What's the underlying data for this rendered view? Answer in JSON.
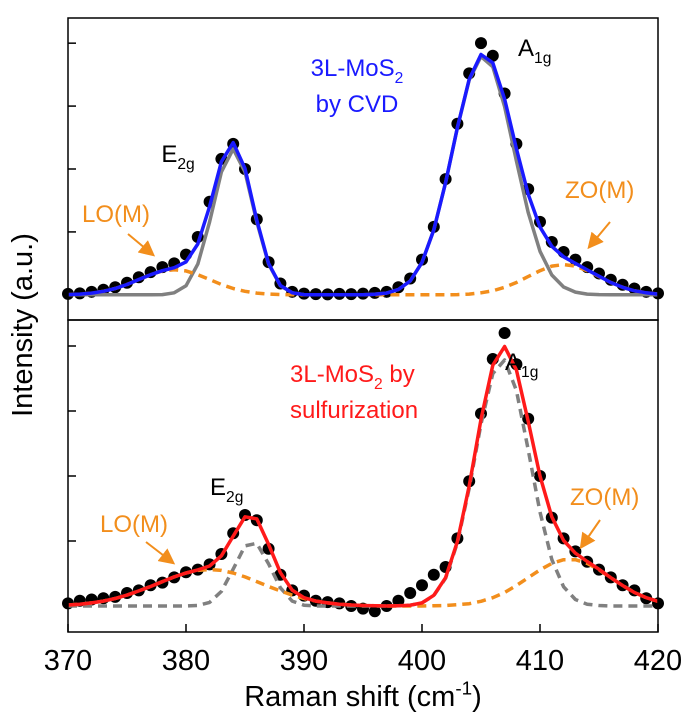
{
  "chart_data": [
    {
      "type": "line",
      "ylabel": "Intensity (a.u.)",
      "xlim": [
        370,
        420
      ],
      "ylim": [
        -0.1,
        1.1
      ],
      "yticks": [
        0,
        0.25,
        0.5,
        0.75,
        1
      ],
      "x": [
        370,
        371,
        372,
        373,
        374,
        375,
        376,
        377,
        378,
        379,
        380,
        381,
        382,
        383,
        384,
        385,
        386,
        387,
        388,
        389,
        390,
        391,
        392,
        393,
        394,
        395,
        396,
        397,
        398,
        399,
        400,
        401,
        402,
        403,
        404,
        405,
        406,
        407,
        408,
        409,
        410,
        411,
        412,
        413,
        414,
        415,
        416,
        417,
        418,
        419,
        420
      ],
      "series": [
        {
          "style": "markers",
          "color": "#000000",
          "values": [
            0.004,
            0.006,
            0.012,
            0.02,
            0.03,
            0.048,
            0.07,
            0.09,
            0.11,
            0.125,
            0.16,
            0.23,
            0.37,
            0.54,
            0.6,
            0.5,
            0.3,
            0.13,
            0.045,
            0.012,
            0.005,
            0.003,
            0.002,
            0.004,
            0.003,
            0.005,
            0.008,
            0.012,
            0.03,
            0.065,
            0.14,
            0.27,
            0.46,
            0.68,
            0.88,
            1.0,
            0.95,
            0.8,
            0.6,
            0.42,
            0.29,
            0.21,
            0.17,
            0.14,
            0.11,
            0.085,
            0.06,
            0.04,
            0.025,
            0.012,
            0.006
          ]
        },
        {
          "style": "solid",
          "color": "#808080",
          "values": [
            0,
            0,
            0,
            0,
            0,
            0,
            0,
            0,
            0.001,
            0.008,
            0.036,
            0.122,
            0.29,
            0.488,
            0.58,
            0.488,
            0.29,
            0.122,
            0.036,
            0.008,
            0.001,
            0,
            0,
            0,
            0,
            0,
            0.002,
            0.007,
            0.021,
            0.055,
            0.129,
            0.258,
            0.446,
            0.664,
            0.854,
            0.947,
            0.906,
            0.748,
            0.532,
            0.327,
            0.173,
            0.079,
            0.031,
            0.011,
            0.003,
            0.001,
            0,
            0,
            0,
            0,
            0
          ]
        },
        {
          "style": "dashed",
          "color": "#f28e1c",
          "values": [
            0.001,
            0.003,
            0.007,
            0.014,
            0.025,
            0.041,
            0.061,
            0.08,
            0.095,
            0.1,
            0.095,
            0.08,
            0.061,
            0.041,
            0.025,
            0.014,
            0.007,
            0.003,
            0.001,
            0,
            0,
            0,
            0,
            0,
            0,
            0,
            0,
            0,
            0,
            0,
            0,
            0,
            0,
            0.001,
            0.003,
            0.008,
            0.016,
            0.03,
            0.049,
            0.073,
            0.096,
            0.114,
            0.12,
            0.114,
            0.096,
            0.073,
            0.049,
            0.03,
            0.016,
            0.008,
            0.003
          ]
        },
        {
          "style": "solid",
          "color": "#1a1aff",
          "values": [
            0.001,
            0.003,
            0.007,
            0.014,
            0.025,
            0.041,
            0.061,
            0.08,
            0.096,
            0.108,
            0.131,
            0.202,
            0.351,
            0.529,
            0.605,
            0.502,
            0.297,
            0.125,
            0.037,
            0.008,
            0.001,
            0,
            0,
            0,
            0,
            0,
            0.002,
            0.007,
            0.021,
            0.055,
            0.129,
            0.258,
            0.446,
            0.665,
            0.857,
            0.955,
            0.922,
            0.778,
            0.581,
            0.4,
            0.269,
            0.193,
            0.151,
            0.125,
            0.099,
            0.074,
            0.049,
            0.03,
            0.016,
            0.008,
            0.003
          ]
        }
      ],
      "annotations": [
        {
          "color": "#1a1aff",
          "lines": [
            [
              {
                "text": "3L-MoS"
              },
              {
                "text": "2",
                "sub": true
              }
            ],
            [
              {
                "text": "by CVD"
              }
            ]
          ]
        },
        {
          "color": "#000000",
          "lines": [
            [
              {
                "text": "E"
              },
              {
                "text": "2g",
                "sub": true
              }
            ]
          ]
        },
        {
          "color": "#000000",
          "lines": [
            [
              {
                "text": "A"
              },
              {
                "text": "1g",
                "sub": true
              }
            ]
          ]
        },
        {
          "color": "#f28e1c",
          "lines": [
            [
              {
                "text": "LO(M)"
              }
            ]
          ]
        },
        {
          "color": "#f28e1c",
          "lines": [
            [
              {
                "text": "ZO(M)"
              }
            ]
          ]
        }
      ]
    },
    {
      "type": "line",
      "xlabel": [
        {
          "text": "Raman shift (cm"
        },
        {
          "text": "-1",
          "sup": true
        },
        {
          "text": ")"
        }
      ],
      "xlim": [
        370,
        420
      ],
      "xticks": [
        370,
        380,
        390,
        400,
        410,
        420
      ],
      "ylim": [
        -0.1,
        1.1
      ],
      "yticks": [
        0,
        0.25,
        0.5,
        0.75,
        1
      ],
      "x": [
        370,
        371,
        372,
        373,
        374,
        375,
        376,
        377,
        378,
        379,
        380,
        381,
        382,
        383,
        384,
        385,
        386,
        387,
        388,
        389,
        390,
        391,
        392,
        393,
        394,
        395,
        396,
        397,
        398,
        399,
        400,
        401,
        402,
        403,
        404,
        405,
        406,
        407,
        408,
        409,
        410,
        411,
        412,
        413,
        414,
        415,
        416,
        417,
        418,
        419,
        420
      ],
      "series": [
        {
          "style": "markers",
          "color": "#000000",
          "values": [
            0.01,
            0.02,
            0.025,
            0.03,
            0.035,
            0.05,
            0.06,
            0.08,
            0.09,
            0.11,
            0.13,
            0.14,
            0.16,
            0.2,
            0.28,
            0.35,
            0.33,
            0.22,
            0.12,
            0.06,
            0.04,
            0.02,
            0.015,
            0.01,
            0.0,
            -0.01,
            -0.02,
            0.0,
            0.02,
            0.05,
            0.08,
            0.12,
            0.15,
            0.26,
            0.48,
            0.74,
            0.95,
            1.05,
            0.93,
            0.72,
            0.5,
            0.34,
            0.26,
            0.21,
            0.17,
            0.14,
            0.11,
            0.08,
            0.06,
            0.03,
            0.01
          ]
        },
        {
          "style": "dashed",
          "color": "#808080",
          "values": [
            0,
            0,
            0,
            0,
            0,
            0,
            0,
            0,
            0,
            0,
            0,
            0.002,
            0.014,
            0.056,
            0.142,
            0.231,
            0.241,
            0.162,
            0.07,
            0.019,
            0.003,
            0,
            0,
            0,
            0,
            0,
            0,
            0,
            0.001,
            0.003,
            0.012,
            0.04,
            0.107,
            0.243,
            0.453,
            0.7,
            0.894,
            0.946,
            0.829,
            0.601,
            0.361,
            0.179,
            0.074,
            0.025,
            0.007,
            0.002,
            0,
            0,
            0,
            0,
            0
          ]
        },
        {
          "style": "dashed",
          "color": "#f28e1c",
          "values": [
            0.004,
            0.007,
            0.012,
            0.019,
            0.029,
            0.042,
            0.058,
            0.075,
            0.094,
            0.112,
            0.127,
            0.137,
            0.14,
            0.137,
            0.127,
            0.112,
            0.094,
            0.075,
            0.058,
            0.042,
            0.029,
            0.019,
            0.012,
            0.007,
            0.004,
            0.002,
            0.001,
            0,
            0,
            0,
            0,
            0.001,
            0.002,
            0.005,
            0.009,
            0.018,
            0.032,
            0.052,
            0.079,
            0.109,
            0.139,
            0.164,
            0.178,
            0.178,
            0.164,
            0.139,
            0.109,
            0.079,
            0.052,
            0.032,
            0.018
          ]
        },
        {
          "style": "solid",
          "color": "#ff1a1a",
          "values": [
            0.004,
            0.007,
            0.012,
            0.019,
            0.029,
            0.042,
            0.058,
            0.075,
            0.094,
            0.112,
            0.127,
            0.139,
            0.154,
            0.193,
            0.269,
            0.343,
            0.335,
            0.237,
            0.128,
            0.061,
            0.032,
            0.019,
            0.012,
            0.007,
            0.004,
            0.002,
            0.001,
            0,
            0.001,
            0.003,
            0.012,
            0.041,
            0.109,
            0.248,
            0.462,
            0.718,
            0.926,
            0.998,
            0.908,
            0.71,
            0.5,
            0.343,
            0.252,
            0.203,
            0.171,
            0.141,
            0.109,
            0.079,
            0.052,
            0.032,
            0.018
          ]
        }
      ],
      "annotations": [
        {
          "color": "#ff1a1a",
          "lines": [
            [
              {
                "text": "3L-MoS"
              },
              {
                "text": "2",
                "sub": true
              },
              {
                "text": " by"
              }
            ],
            [
              {
                "text": "sulfurization"
              }
            ]
          ]
        },
        {
          "color": "#000000",
          "lines": [
            [
              {
                "text": "A"
              },
              {
                "text": "1g",
                "sub": true
              }
            ]
          ]
        },
        {
          "color": "#000000",
          "lines": [
            [
              {
                "text": "E"
              },
              {
                "text": "2g",
                "sub": true
              }
            ]
          ]
        },
        {
          "color": "#f28e1c",
          "lines": [
            [
              {
                "text": "LO(M)"
              }
            ]
          ]
        },
        {
          "color": "#f28e1c",
          "lines": [
            [
              {
                "text": "ZO(M)"
              }
            ]
          ]
        }
      ]
    }
  ]
}
